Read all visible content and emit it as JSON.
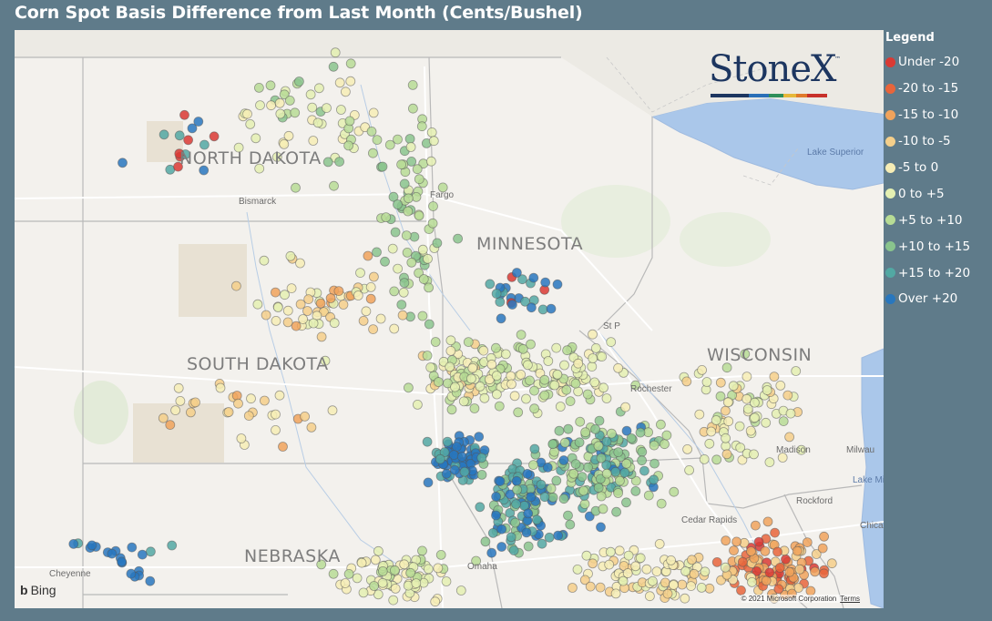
{
  "title": "Corn Spot Basis Difference from Last Month (Cents/Bushel)",
  "legend": {
    "title": "Legend",
    "items": [
      {
        "label": "Under -20",
        "color": "#d93a34"
      },
      {
        "label": "-20 to -15",
        "color": "#e8653b"
      },
      {
        "label": "-15 to -10",
        "color": "#f0a35c"
      },
      {
        "label": "-10 to -5",
        "color": "#f5cf8a"
      },
      {
        "label": "-5 to 0",
        "color": "#f6edb5"
      },
      {
        "label": "0 to +5",
        "color": "#e4f0b2"
      },
      {
        "label": "+5 to +10",
        "color": "#b7dc95"
      },
      {
        "label": "+10 to +15",
        "color": "#89c48d"
      },
      {
        "label": "+15 to +20",
        "color": "#52a8a3"
      },
      {
        "label": "Over +20",
        "color": "#2877be"
      }
    ]
  },
  "map": {
    "state_labels": [
      "NORTH DAKOTA",
      "MINNESOTA",
      "SOUTH DAKOTA",
      "WISCONSIN",
      "NEBRASKA"
    ],
    "city_labels": [
      "Bismarck",
      "Fargo",
      "St P",
      "Rochester",
      "Madison",
      "Milwau",
      "Rockford",
      "Cedar Rapids",
      "Chica",
      "Omaha",
      "Cheyenne"
    ],
    "water_labels": [
      "Lake Superior",
      "Lake Mi"
    ]
  },
  "logo": {
    "text": "StoneX",
    "tm": "™",
    "bar_colors": [
      "#1d3660",
      "#2a6fb7",
      "#2f8f5a",
      "#e6b83a",
      "#e07a2c",
      "#c8312b"
    ]
  },
  "attribution": {
    "provider": "Bing",
    "copyright": "© 2021 Microsoft Corporation",
    "terms": "Terms"
  }
}
